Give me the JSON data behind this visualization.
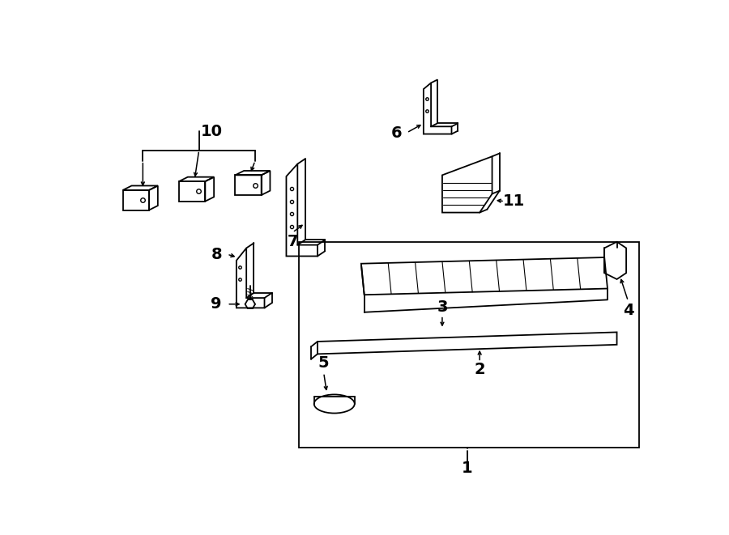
{
  "background_color": "#ffffff",
  "fig_width": 9.0,
  "fig_height": 6.61,
  "dpi": 100
}
